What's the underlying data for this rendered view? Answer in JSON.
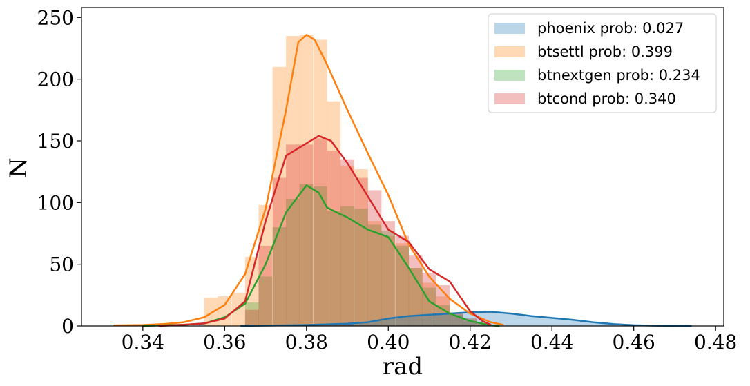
{
  "chart_data": {
    "type": "histogram+kde",
    "xlabel": "rad",
    "ylabel": "N",
    "xlim": [
      0.325,
      0.482
    ],
    "ylim": [
      0,
      258
    ],
    "xticks": [
      0.34,
      0.36,
      0.38,
      0.4,
      0.42,
      0.44,
      0.46,
      0.48
    ],
    "xtick_labels": [
      "0.34",
      "0.36",
      "0.38",
      "0.40",
      "0.42",
      "0.44",
      "0.46",
      "0.48"
    ],
    "yticks": [
      0,
      50,
      100,
      150,
      200,
      250
    ],
    "ytick_labels": [
      "0",
      "50",
      "100",
      "150",
      "200",
      "250"
    ],
    "grid": false,
    "legend_position": "top-right",
    "series": [
      {
        "name": "phoenix prob: 0.027",
        "color": "#1f77b4",
        "kde_filled": true,
        "hist": [],
        "kde": [
          [
            0.364,
            0
          ],
          [
            0.37,
            0.3
          ],
          [
            0.38,
            0.8
          ],
          [
            0.39,
            1.8
          ],
          [
            0.395,
            3
          ],
          [
            0.4,
            6
          ],
          [
            0.405,
            8
          ],
          [
            0.41,
            9
          ],
          [
            0.415,
            10
          ],
          [
            0.42,
            11
          ],
          [
            0.425,
            11.5
          ],
          [
            0.43,
            10
          ],
          [
            0.435,
            8
          ],
          [
            0.44,
            6.5
          ],
          [
            0.445,
            5
          ],
          [
            0.45,
            3
          ],
          [
            0.455,
            1.5
          ],
          [
            0.46,
            0.6
          ],
          [
            0.465,
            0.2
          ],
          [
            0.474,
            0
          ]
        ]
      },
      {
        "name": "btsettl prob: 0.399",
        "color": "#ff7f0e",
        "kde_filled": false,
        "bin_width": 0.00333,
        "hist": [
          [
            0.355,
            23
          ],
          [
            0.3583,
            24
          ],
          [
            0.3617,
            27
          ],
          [
            0.365,
            56
          ],
          [
            0.3683,
            98
          ],
          [
            0.3717,
            210
          ],
          [
            0.375,
            235
          ],
          [
            0.3783,
            236
          ],
          [
            0.3817,
            232
          ],
          [
            0.385,
            182
          ],
          [
            0.3883,
            130
          ],
          [
            0.3917,
            127
          ],
          [
            0.395,
            85
          ],
          [
            0.3983,
            73
          ],
          [
            0.4017,
            67
          ],
          [
            0.405,
            47
          ],
          [
            0.4083,
            35
          ],
          [
            0.4117,
            24
          ],
          [
            0.415,
            11
          ],
          [
            0.4183,
            6
          ],
          [
            0.4217,
            2
          ]
        ],
        "kde": [
          [
            0.333,
            0.5
          ],
          [
            0.34,
            0.8
          ],
          [
            0.345,
            1.5
          ],
          [
            0.35,
            3
          ],
          [
            0.355,
            7
          ],
          [
            0.36,
            17
          ],
          [
            0.365,
            42
          ],
          [
            0.37,
            95
          ],
          [
            0.375,
            175
          ],
          [
            0.378,
            230
          ],
          [
            0.38,
            236
          ],
          [
            0.382,
            232
          ],
          [
            0.385,
            212
          ],
          [
            0.39,
            175
          ],
          [
            0.395,
            140
          ],
          [
            0.4,
            106
          ],
          [
            0.405,
            66
          ],
          [
            0.41,
            40
          ],
          [
            0.415,
            22
          ],
          [
            0.42,
            10
          ],
          [
            0.425,
            3
          ],
          [
            0.428,
            1
          ]
        ]
      },
      {
        "name": "btnextgen prob: 0.234",
        "color": "#2ca02c",
        "kde_filled": false,
        "bin_width": 0.00333,
        "hist": [
          [
            0.365,
            19
          ],
          [
            0.3683,
            40
          ],
          [
            0.3717,
            80
          ],
          [
            0.375,
            103
          ],
          [
            0.3783,
            115
          ],
          [
            0.3817,
            113
          ],
          [
            0.385,
            93
          ],
          [
            0.3883,
            97
          ],
          [
            0.3917,
            95
          ],
          [
            0.395,
            82
          ],
          [
            0.3983,
            77
          ],
          [
            0.4017,
            65
          ],
          [
            0.405,
            47
          ],
          [
            0.4083,
            31
          ],
          [
            0.4117,
            17
          ],
          [
            0.415,
            9
          ],
          [
            0.4183,
            4
          ],
          [
            0.4217,
            1
          ]
        ],
        "kde": [
          [
            0.34,
            0
          ],
          [
            0.35,
            1
          ],
          [
            0.355,
            2
          ],
          [
            0.36,
            7
          ],
          [
            0.365,
            18
          ],
          [
            0.37,
            50
          ],
          [
            0.375,
            92
          ],
          [
            0.38,
            114
          ],
          [
            0.383,
            108
          ],
          [
            0.385,
            96
          ],
          [
            0.388,
            91
          ],
          [
            0.39,
            88
          ],
          [
            0.395,
            78
          ],
          [
            0.4,
            72
          ],
          [
            0.405,
            47
          ],
          [
            0.41,
            20
          ],
          [
            0.415,
            10
          ],
          [
            0.42,
            4
          ],
          [
            0.425,
            0.5
          ],
          [
            0.427,
            0
          ]
        ]
      },
      {
        "name": "btcond prob: 0.340",
        "color": "#d62728",
        "kde_filled": false,
        "bin_width": 0.00333,
        "hist": [
          [
            0.365,
            13
          ],
          [
            0.3683,
            65
          ],
          [
            0.3717,
            120
          ],
          [
            0.375,
            147
          ],
          [
            0.3783,
            147
          ],
          [
            0.3817,
            152
          ],
          [
            0.385,
            142
          ],
          [
            0.3883,
            135
          ],
          [
            0.3917,
            120
          ],
          [
            0.395,
            110
          ],
          [
            0.3983,
            85
          ],
          [
            0.4017,
            73
          ],
          [
            0.405,
            57
          ],
          [
            0.4083,
            43
          ],
          [
            0.4117,
            33
          ],
          [
            0.415,
            10
          ],
          [
            0.4183,
            6
          ],
          [
            0.4217,
            2
          ]
        ],
        "kde": [
          [
            0.344,
            0
          ],
          [
            0.35,
            1
          ],
          [
            0.355,
            2
          ],
          [
            0.36,
            6
          ],
          [
            0.365,
            20
          ],
          [
            0.37,
            85
          ],
          [
            0.375,
            138
          ],
          [
            0.38,
            148
          ],
          [
            0.383,
            154
          ],
          [
            0.386,
            150
          ],
          [
            0.39,
            132
          ],
          [
            0.395,
            105
          ],
          [
            0.4,
            78
          ],
          [
            0.405,
            68
          ],
          [
            0.41,
            46
          ],
          [
            0.415,
            36
          ],
          [
            0.42,
            12
          ],
          [
            0.423,
            4
          ],
          [
            0.425,
            1
          ]
        ]
      }
    ]
  }
}
